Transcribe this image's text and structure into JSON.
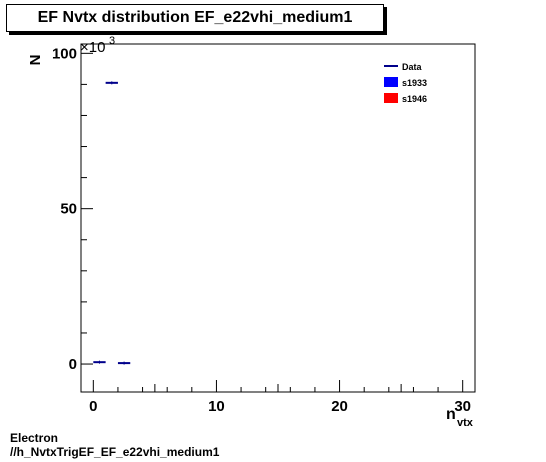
{
  "title": "EF Nvtx distribution EF_e22vhi_medium1",
  "footer": {
    "line1": "Electron",
    "line2": "//h_NvtxTrigEF_EF_e22vhi_medium1"
  },
  "colors": {
    "data": "#00008b",
    "s1933": "#0000ff",
    "s1946": "#ff0000"
  },
  "chart_data": {
    "type": "scatter",
    "title": "EF Nvtx distribution EF_e22vhi_medium1",
    "xlabel": "n",
    "xlabel_sub": "vtx",
    "ylabel": "N",
    "y_multiplier": "×10",
    "y_multiplier_exp": "3",
    "xlim": [
      -1,
      31
    ],
    "ylim": [
      -9,
      103
    ],
    "x_ticks": [
      0,
      10,
      20,
      30
    ],
    "y_ticks": [
      0,
      50,
      100
    ],
    "grid": false,
    "legend_position": "top-right",
    "legend": [
      {
        "name": "Data",
        "style": "line"
      },
      {
        "name": "s1933",
        "style": "box"
      },
      {
        "name": "s1946",
        "style": "box"
      }
    ],
    "series": [
      {
        "name": "Data",
        "points": [
          {
            "x0": 0,
            "x1": 1,
            "y": 0.6
          },
          {
            "x0": 1,
            "x1": 2,
            "y": 90.5
          },
          {
            "x0": 2,
            "x1": 3,
            "y": 0.3
          }
        ]
      }
    ]
  }
}
